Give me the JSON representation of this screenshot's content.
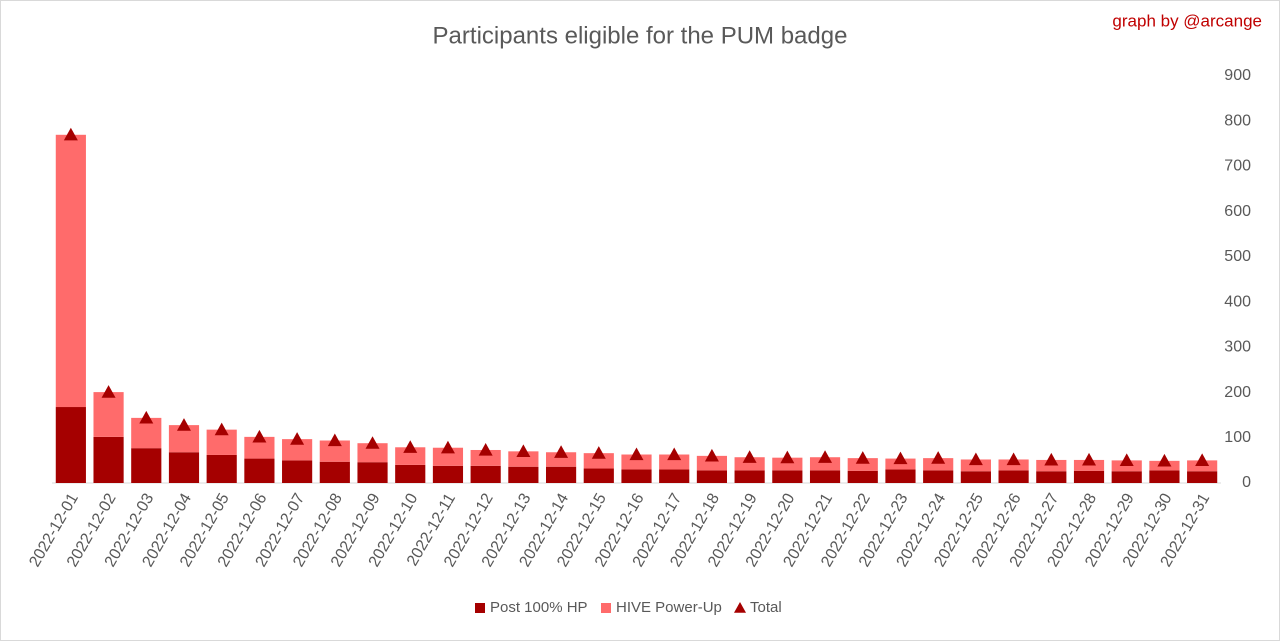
{
  "chart_data": {
    "type": "bar",
    "stacked": true,
    "title": "Participants eligible for the PUM badge",
    "credit": "graph by @arcange",
    "categories": [
      "2022-12-01",
      "2022-12-02",
      "2022-12-03",
      "2022-12-04",
      "2022-12-05",
      "2022-12-06",
      "2022-12-07",
      "2022-12-08",
      "2022-12-09",
      "2022-12-10",
      "2022-12-11",
      "2022-12-12",
      "2022-12-13",
      "2022-12-14",
      "2022-12-15",
      "2022-12-16",
      "2022-12-17",
      "2022-12-18",
      "2022-12-19",
      "2022-12-20",
      "2022-12-21",
      "2022-12-22",
      "2022-12-23",
      "2022-12-24",
      "2022-12-25",
      "2022-12-26",
      "2022-12-27",
      "2022-12-28",
      "2022-12-29",
      "2022-12-30",
      "2022-12-31"
    ],
    "series": [
      {
        "name": "Post 100% HP",
        "color": "#a50000",
        "marker": "square",
        "values": [
          168,
          102,
          77,
          68,
          62,
          54,
          50,
          47,
          46,
          40,
          38,
          38,
          36,
          36,
          32,
          30,
          30,
          28,
          28,
          28,
          28,
          27,
          30,
          28,
          26,
          28,
          26,
          27,
          26,
          28,
          26
        ]
      },
      {
        "name": "HIVE Power-Up",
        "color": "#ff6b6b",
        "marker": "square",
        "values": [
          602,
          99,
          67,
          60,
          56,
          48,
          47,
          47,
          42,
          39,
          40,
          35,
          34,
          32,
          34,
          33,
          33,
          32,
          29,
          28,
          29,
          28,
          24,
          27,
          26,
          24,
          25,
          24,
          24,
          21,
          24
        ]
      },
      {
        "name": "Total",
        "color": "#a50000",
        "marker": "triangle",
        "values": [
          770,
          201,
          144,
          128,
          118,
          102,
          97,
          94,
          88,
          79,
          78,
          73,
          70,
          68,
          66,
          63,
          63,
          60,
          57,
          56,
          57,
          55,
          54,
          55,
          52,
          52,
          51,
          51,
          50,
          49,
          50
        ]
      }
    ],
    "ylim": [
      0,
      900
    ],
    "yticks": [
      0,
      100,
      200,
      300,
      400,
      500,
      600,
      700,
      800,
      900
    ],
    "grid": false,
    "y_axis_side": "right",
    "legend": "bottom"
  }
}
